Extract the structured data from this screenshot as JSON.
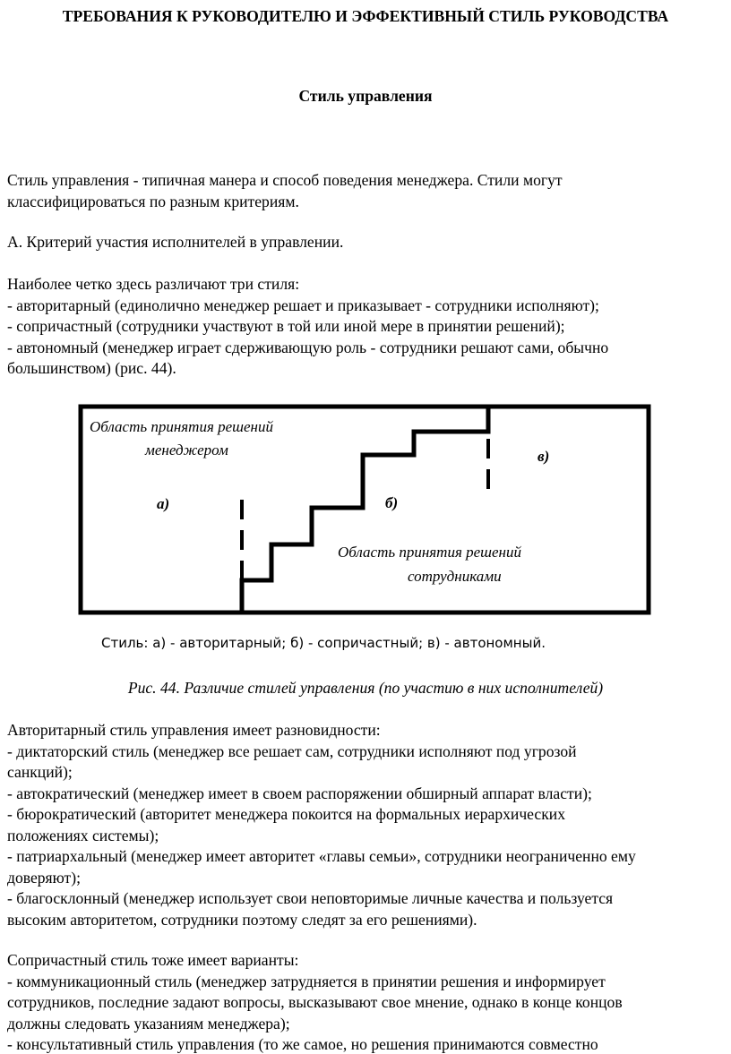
{
  "title": "ТРЕБОВАНИЯ К РУКОВОДИТЕЛЮ И ЭФФЕКТИВНЫЙ СТИЛЬ РУКОВОДСТВА",
  "subtitle": "Стиль управления",
  "block1": [
    "Стиль управления - типичная манера и способ поведения менеджера. Стили могут",
    "классифицироваться по разным критериям."
  ],
  "criterion": "А. Критерий участия исполнителей в управлении.",
  "block2": [
    "Наиболее четко здесь различают три стиля:",
    "- авторитарный (единолично менеджер решает и приказывает - сотрудники исполняют);",
    "- сопричастный (сотрудники участвуют в той или иной мере в принятии решений);",
    "- автономный (менеджер играет сдерживающую роль - сотрудники решают сами, обычно",
    "большинством) (рис. 44)."
  ],
  "figure": {
    "manager_area": [
      "Область принятия решений",
      "менеджером"
    ],
    "staff_area": [
      "Область принятия решений",
      "сотрудниками"
    ],
    "label_a": "а)",
    "label_b": "б)",
    "label_c": "в)",
    "legend": "Стиль: а) - авторитарный; б) - сопричастный; в) - автономный.",
    "caption": "Рис. 44. Различие стилей управления (по участию в них исполнителей)"
  },
  "block3": [
    "Авторитарный стиль управления имеет разновидности:",
    "- диктаторский стиль (менеджер все решает сам, сотрудники исполняют под угрозой",
    "санкций);",
    "- автократический (менеджер имеет в своем распоряжении обширный аппарат власти);",
    "- бюрократический (авторитет менеджера покоится на формальных иерархических",
    "положениях системы);",
    "- патриархальный (менеджер имеет авторитет «главы семьи», сотрудники неограниченно ему",
    "доверяют);",
    "- благосклонный (менеджер использует свои неповторимые личные качества и пользуется",
    "высоким авторитетом, сотрудники поэтому следят за его решениями)."
  ],
  "block4": [
    "Сопричастный стиль тоже имеет варианты:",
    "- коммуникационный стиль (менеджер затрудняется в принятии решения и информирует",
    "сотрудников, последние задают вопросы, высказывают свое мнение, однако в конце концов",
    "должны следовать указаниям менеджера);",
    "- консультативный стиль управления (то же самое, но решения принимаются совместно"
  ]
}
